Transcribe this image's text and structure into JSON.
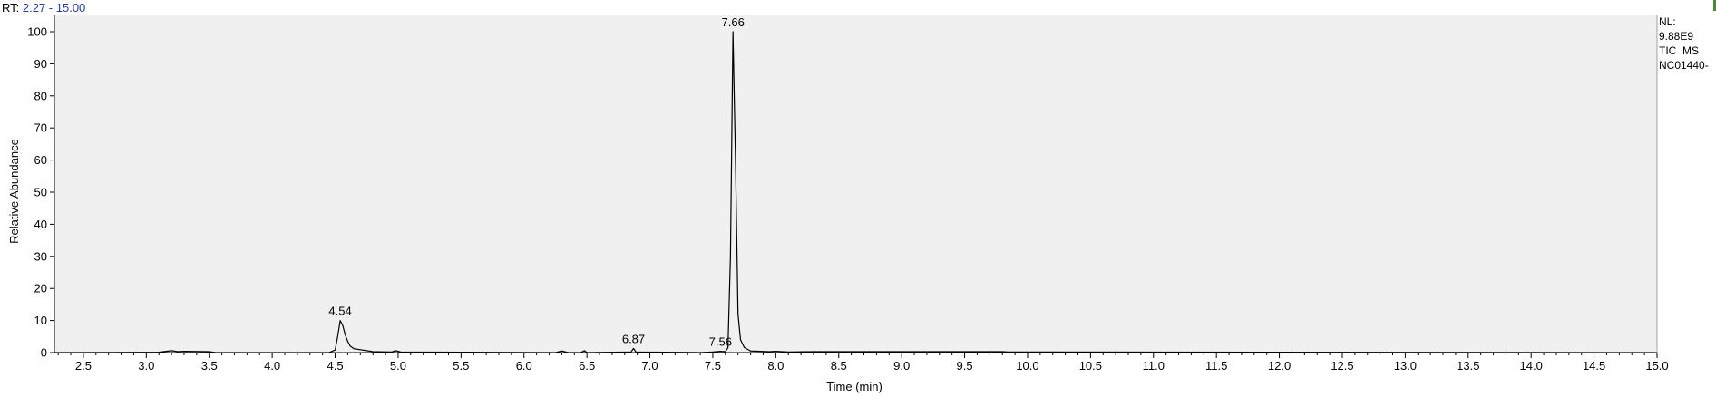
{
  "header": {
    "rt_prefix": "RT:",
    "rt_range": "2.27 - 15.00"
  },
  "info": {
    "nl_label": "NL:",
    "nl_value": "9.88E9",
    "scan_type": "TIC  MS",
    "file_name": "NC01440-"
  },
  "colors": {
    "plot_background": "#f0f0f0",
    "trace": "#000000",
    "rt_range_text": "#1f3fa8"
  },
  "chart_data": {
    "type": "line",
    "xlabel": "Time (min)",
    "ylabel": "Relative Abundance",
    "xlim": [
      2.27,
      15.0
    ],
    "ylim": [
      0,
      100
    ],
    "x_ticks": [
      2.5,
      3.0,
      3.5,
      4.0,
      4.5,
      5.0,
      5.5,
      6.0,
      6.5,
      7.0,
      7.5,
      8.0,
      8.5,
      9.0,
      9.5,
      10.0,
      10.5,
      11.0,
      11.5,
      12.0,
      12.5,
      13.0,
      13.5,
      14.0,
      14.5,
      15.0
    ],
    "x_tick_labels": [
      "2.5",
      "3.0",
      "3.5",
      "4.0",
      "4.5",
      "5.0",
      "5.5",
      "6.0",
      "6.5",
      "7.0",
      "7.5",
      "8.0",
      "8.5",
      "9.0",
      "9.5",
      "10.0",
      "10.5",
      "11.0",
      "11.5",
      "12.0",
      "12.5",
      "13.0",
      "13.5",
      "14.0",
      "14.5",
      "15.0"
    ],
    "y_ticks": [
      0,
      10,
      20,
      30,
      40,
      50,
      60,
      70,
      80,
      90,
      100
    ],
    "y_tick_labels": [
      "0",
      "10",
      "20",
      "30",
      "40",
      "50",
      "60",
      "70",
      "80",
      "90",
      "100"
    ],
    "grid": false,
    "series": [
      {
        "x": [
          2.27,
          3.1,
          3.2,
          3.25,
          3.3,
          3.5,
          3.55,
          4.45,
          4.5,
          4.52,
          4.54,
          4.56,
          4.58,
          4.6,
          4.62,
          4.65,
          4.7,
          4.75,
          4.8,
          4.95,
          4.98,
          5.02,
          6.25,
          6.3,
          6.35,
          6.45,
          6.48,
          6.5,
          6.85,
          6.87,
          6.89,
          7.4,
          7.5,
          7.56,
          7.6,
          7.62,
          7.64,
          7.66,
          7.68,
          7.7,
          7.72,
          7.75,
          7.8,
          7.95,
          8.0,
          8.1,
          8.3,
          9.0,
          9.8,
          9.85,
          15.0
        ],
        "y": [
          0,
          0.1,
          0.6,
          0.3,
          0.4,
          0.3,
          0,
          0,
          0.8,
          5,
          10,
          8.5,
          5.5,
          3.5,
          2,
          1.2,
          0.9,
          0.6,
          0.3,
          0.2,
          0.6,
          0.2,
          0,
          0.5,
          0,
          0,
          0.6,
          0,
          0.2,
          1.3,
          0.2,
          0,
          0.2,
          0.4,
          0.3,
          1.5,
          30,
          100,
          60,
          12,
          4,
          1.6,
          0.5,
          0.3,
          0.4,
          0.2,
          0.3,
          0.3,
          0.3,
          0.2,
          0
        ]
      }
    ],
    "peaks": [
      {
        "x": 4.54,
        "y": 10,
        "label": "4.54"
      },
      {
        "x": 6.87,
        "y": 1.3,
        "label": "6.87"
      },
      {
        "x": 7.56,
        "y": 0.4,
        "label": "7.56"
      },
      {
        "x": 7.66,
        "y": 100,
        "label": "7.66"
      }
    ]
  }
}
